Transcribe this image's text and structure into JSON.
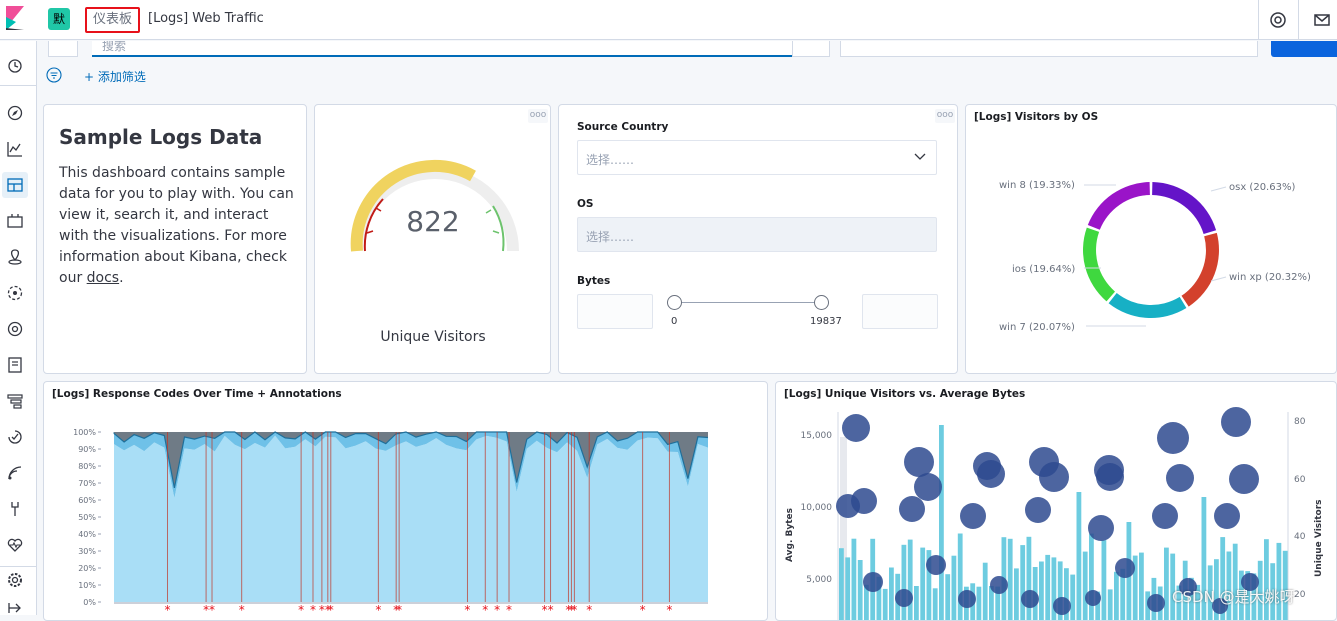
{
  "header": {
    "space_initial": "默",
    "breadcrumb_root": "仪表板",
    "breadcrumb_current": "[Logs] Web Traffic"
  },
  "query": {
    "search_placeholder": "搜索",
    "add_filter": "+ 添加筛选"
  },
  "markdown_panel": {
    "title": "Sample Logs Data",
    "body": "This dashboard contains sample data for you to play with. You can view it, search it, and interact with the visualizations. For more information about Kibana, check our ",
    "link": "docs",
    "suffix": "."
  },
  "gauge_panel": {
    "value": "822",
    "label": "Unique Visitors",
    "menu": "ooo"
  },
  "controls_panel": {
    "menu": "ooo",
    "source_country_label": "Source Country",
    "source_country_placeholder": "选择……",
    "os_label": "OS",
    "os_placeholder": "选择……",
    "bytes_label": "Bytes",
    "bytes_min": "0",
    "bytes_max": "19837"
  },
  "os_panel": {
    "title": "[Logs] Visitors by OS"
  },
  "response_panel": {
    "title": "[Logs] Response Codes Over Time + Annotations"
  },
  "visitors_panel": {
    "title": "[Logs] Unique Visitors vs. Average Bytes"
  },
  "watermark": "CSDN @是大姚呀",
  "colors": {
    "accent": "#006bb8",
    "highlight_box": "#e7111a",
    "gauge_yellow": "#f0d35f",
    "gauge_red": "#c11b17",
    "gauge_green": "#6dc36d"
  },
  "chart_data": [
    {
      "type": "pie",
      "variant": "donut",
      "slices": [
        {
          "label": "osx (20.63%)",
          "value": 20.63,
          "color": "#6414c8"
        },
        {
          "label": "win xp (20.32%)",
          "value": 20.32,
          "color": "#d3412c"
        },
        {
          "label": "win 7 (20.07%)",
          "value": 20.07,
          "color": "#17b0c5"
        },
        {
          "label": "ios (19.64%)",
          "value": 19.64,
          "color": "#3fd83f"
        },
        {
          "label": "win 8 (19.33%)",
          "value": 19.33,
          "color": "#9a14c8"
        }
      ]
    },
    {
      "type": "area",
      "title": "[Logs] Response Codes Over Time + Annotations",
      "ylim": [
        0,
        100
      ],
      "yticks": [
        "100%",
        "90%",
        "80%",
        "70%",
        "60%",
        "50%",
        "40%",
        "30%",
        "20%",
        "10%",
        "0%"
      ],
      "annotation_marker": "*"
    },
    {
      "type": "bar",
      "title": "[Logs] Unique Visitors vs. Average Bytes",
      "ylabel": "Avg. Bytes",
      "y2label": "Unique Visitors",
      "yticks": [
        "15,000",
        "10,000",
        "5,000"
      ],
      "y2ticks": [
        "80",
        "60",
        "40",
        "20"
      ]
    }
  ]
}
